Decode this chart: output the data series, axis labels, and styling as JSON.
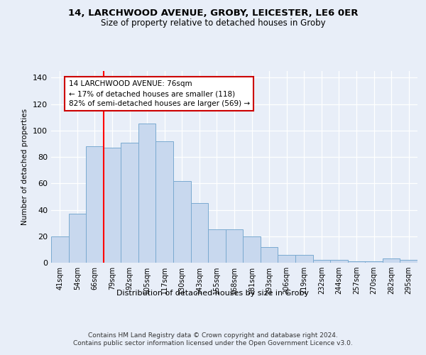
{
  "title1": "14, LARCHWOOD AVENUE, GROBY, LEICESTER, LE6 0ER",
  "title2": "Size of property relative to detached houses in Groby",
  "xlabel": "Distribution of detached houses by size in Groby",
  "ylabel": "Number of detached properties",
  "bar_labels": [
    "41sqm",
    "54sqm",
    "66sqm",
    "79sqm",
    "92sqm",
    "105sqm",
    "117sqm",
    "130sqm",
    "143sqm",
    "155sqm",
    "168sqm",
    "181sqm",
    "193sqm",
    "206sqm",
    "219sqm",
    "232sqm",
    "244sqm",
    "257sqm",
    "270sqm",
    "282sqm",
    "295sqm"
  ],
  "bar_values": [
    20,
    37,
    88,
    87,
    91,
    105,
    92,
    62,
    45,
    25,
    25,
    20,
    12,
    6,
    6,
    2,
    2,
    1,
    1,
    3,
    2
  ],
  "bar_color": "#c8d8ee",
  "bar_edge_color": "#7aaad0",
  "vline_color": "red",
  "annotation_text": "14 LARCHWOOD AVENUE: 76sqm\n← 17% of detached houses are smaller (118)\n82% of semi-detached houses are larger (569) →",
  "annotation_box_color": "white",
  "annotation_box_edge_color": "#cc0000",
  "ylim": [
    0,
    145
  ],
  "yticks": [
    0,
    20,
    40,
    60,
    80,
    100,
    120,
    140
  ],
  "footer": "Contains HM Land Registry data © Crown copyright and database right 2024.\nContains public sector information licensed under the Open Government Licence v3.0.",
  "bg_color": "#e8eef8",
  "plot_bg_color": "#e8eef8",
  "grid_color": "#ffffff",
  "title_fontsize": 9.5,
  "subtitle_fontsize": 8.5
}
